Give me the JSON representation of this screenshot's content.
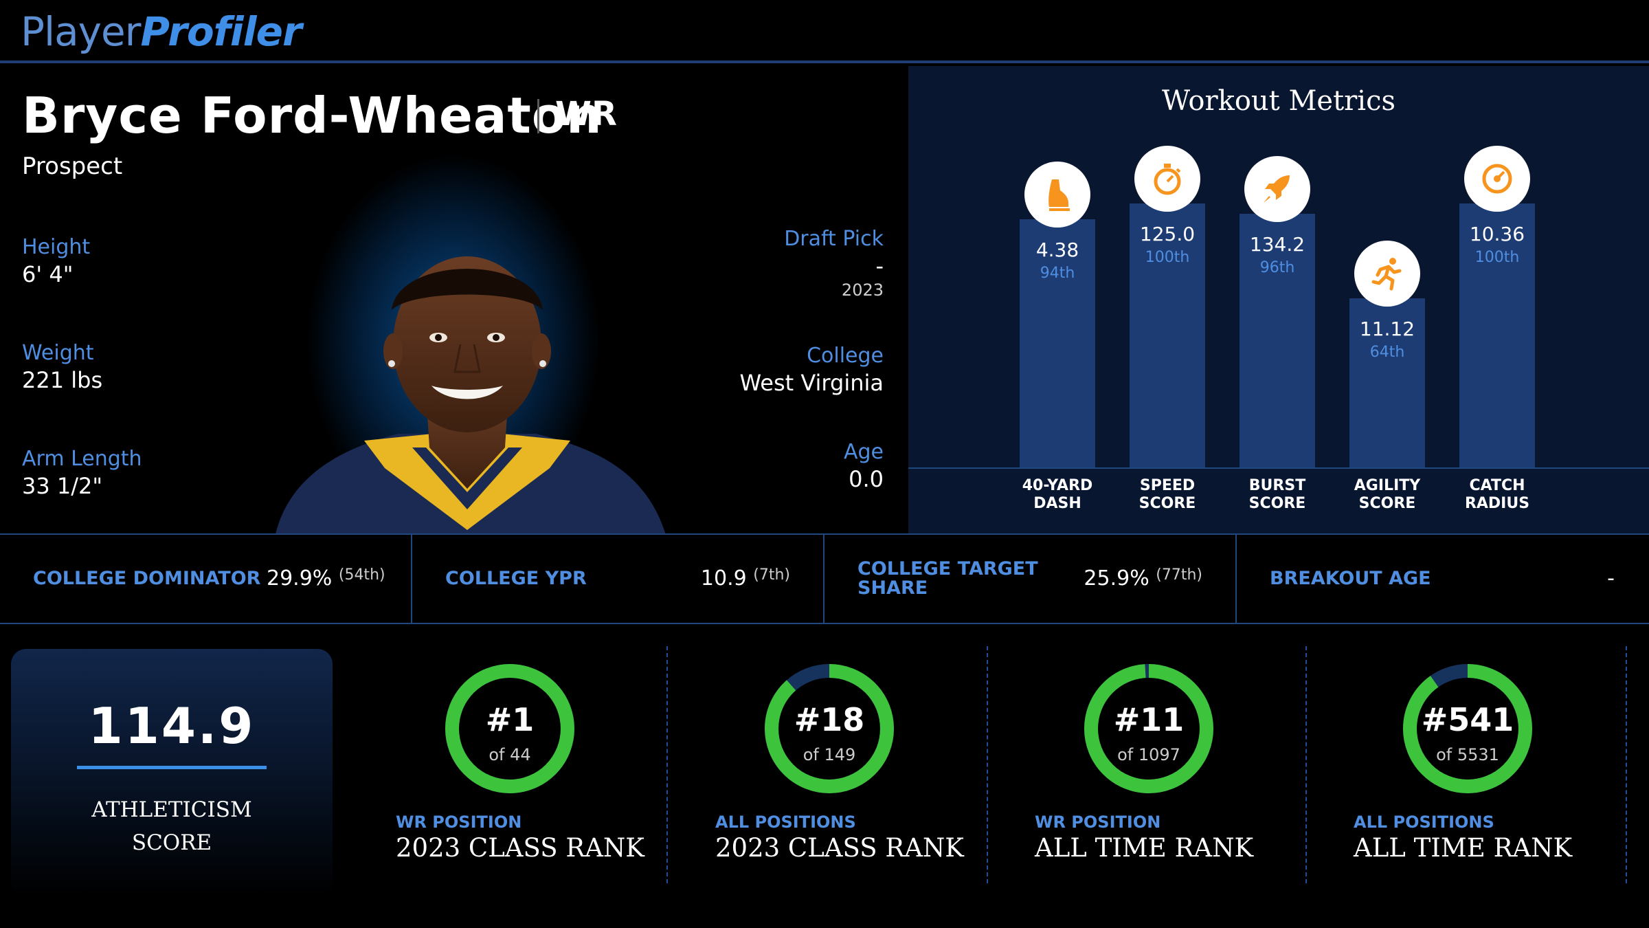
{
  "brand": {
    "part1": "Player",
    "part2": "Profiler"
  },
  "player": {
    "name": "Bryce Ford-Wheaton",
    "position": "WR",
    "status": "Prospect",
    "left_stats": [
      {
        "label": "Height",
        "value": "6' 4\""
      },
      {
        "label": "Weight",
        "value": "221 lbs"
      },
      {
        "label": "Arm Length",
        "value": "33 1/2\""
      }
    ],
    "right_stats": {
      "draft_label": "Draft Pick",
      "draft_value": "-",
      "draft_year": "2023",
      "college_label": "College",
      "college_value": "West Virginia",
      "age_label": "Age",
      "age_value": "0.0"
    }
  },
  "workout": {
    "title": "Workout Metrics",
    "metrics": [
      {
        "label_line1": "40-YARD",
        "label_line2": "DASH",
        "value": "4.38",
        "rank": "94th",
        "percentile": 94,
        "icon": "shoe-icon"
      },
      {
        "label_line1": "SPEED",
        "label_line2": "SCORE",
        "value": "125.0",
        "rank": "100th",
        "percentile": 100,
        "icon": "stopwatch-icon"
      },
      {
        "label_line1": "BURST",
        "label_line2": "SCORE",
        "value": "134.2",
        "rank": "96th",
        "percentile": 96,
        "icon": "rocket-icon"
      },
      {
        "label_line1": "AGILITY",
        "label_line2": "SCORE",
        "value": "11.12",
        "rank": "64th",
        "percentile": 64,
        "icon": "runner-icon"
      },
      {
        "label_line1": "CATCH",
        "label_line2": "RADIUS",
        "value": "10.36",
        "rank": "100th",
        "percentile": 100,
        "icon": "gauge-icon"
      }
    ]
  },
  "college_stats": [
    {
      "label": "COLLEGE DOMINATOR",
      "value": "29.9%",
      "rank": "(54th)"
    },
    {
      "label": "COLLEGE YPR",
      "value": "10.9",
      "rank": "(7th)"
    },
    {
      "label_line1": "COLLEGE TARGET",
      "label_line2": "SHARE",
      "value": "25.9%",
      "rank": "(77th)"
    },
    {
      "label": "BREAKOUT AGE",
      "value": "-",
      "rank": ""
    }
  ],
  "athleticism": {
    "value": "114.9",
    "label_line1": "ATHLETICISM",
    "label_line2": "SCORE"
  },
  "ranks": [
    {
      "rank": "#1",
      "of": "of 44",
      "sub": "WR POSITION",
      "main": "2023 CLASS RANK",
      "fill": 1.0
    },
    {
      "rank": "#18",
      "of": "of 149",
      "sub": "ALL POSITIONS",
      "main": "2023 CLASS RANK",
      "fill": 0.885
    },
    {
      "rank": "#11",
      "of": "of 1097",
      "sub": "WR POSITION",
      "main": "ALL TIME RANK",
      "fill": 0.99
    },
    {
      "rank": "#541",
      "of": "of 5531",
      "sub": "ALL POSITIONS",
      "main": "ALL TIME RANK",
      "fill": 0.902
    }
  ],
  "colors": {
    "accent": "#4f8ee0",
    "ring_fill": "#3ec43c",
    "ring_track": "#16335e",
    "icon": "#f7941d",
    "bar": "#1e3c74"
  }
}
